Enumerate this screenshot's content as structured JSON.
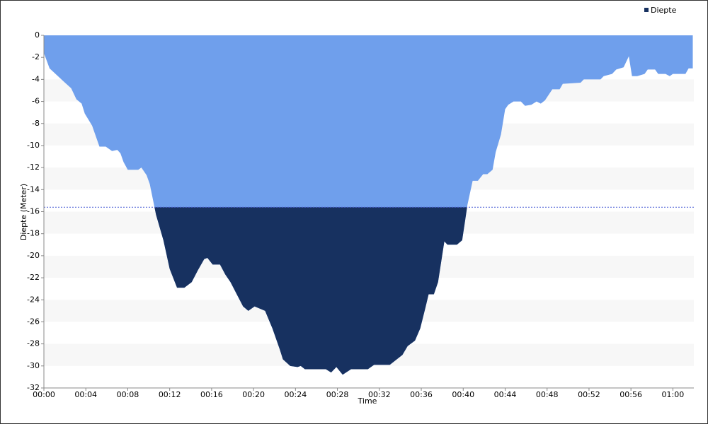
{
  "chart_data": {
    "type": "area",
    "x_label": "Time",
    "y_label": "Diepte (Meter)",
    "x": [
      0,
      0.54,
      1.9,
      2.6,
      3.1,
      3.6,
      3.9,
      4.6,
      5.3,
      5.9,
      6.5,
      7.0,
      7.3,
      7.6,
      8.0,
      9.0,
      9.3,
      9.8,
      10.1,
      10.7,
      11.4,
      12.0,
      12.7,
      13.4,
      14.1,
      14.7,
      15.3,
      15.6,
      16.1,
      16.8,
      17.3,
      17.8,
      18.4,
      19.0,
      19.5,
      20.1,
      20.6,
      21.1,
      21.8,
      22.5,
      22.8,
      23.5,
      24.2,
      24.5,
      24.9,
      26.9,
      27.4,
      27.9,
      28.5,
      29.3,
      30.9,
      31.5,
      33.0,
      34.2,
      34.7,
      35.4,
      35.9,
      36.4,
      36.7,
      37.2,
      37.6,
      38.2,
      38.5,
      39.4,
      39.9,
      40.2,
      40.4,
      40.9,
      41.4,
      41.9,
      42.3,
      42.8,
      43.1,
      43.6,
      44.0,
      44.3,
      44.8,
      45.5,
      45.9,
      46.5,
      47.0,
      47.4,
      47.8,
      48.5,
      49.2,
      49.5,
      51.2,
      51.5,
      53.1,
      53.4,
      54.2,
      54.6,
      55.3,
      55.8,
      56.1,
      56.6,
      57.3,
      57.6,
      58.3,
      58.6,
      59.3,
      59.7,
      60.0,
      61.2,
      61.5,
      61.9
    ],
    "series": [
      {
        "name": "Diepte",
        "color": "#173160",
        "values": [
          -1.6,
          -3.0,
          -4.2,
          -4.8,
          -5.8,
          -6.2,
          -7.1,
          -8.2,
          -10.1,
          -10.1,
          -10.5,
          -10.4,
          -10.7,
          -11.5,
          -12.2,
          -12.2,
          -12.0,
          -12.7,
          -13.5,
          -16.3,
          -18.6,
          -21.2,
          -22.9,
          -22.9,
          -22.4,
          -21.3,
          -20.3,
          -20.2,
          -20.8,
          -20.8,
          -21.7,
          -22.4,
          -23.5,
          -24.6,
          -25.0,
          -24.6,
          -24.8,
          -25.0,
          -26.6,
          -28.5,
          -29.4,
          -30.0,
          -30.1,
          -30.0,
          -30.3,
          -30.3,
          -30.6,
          -30.1,
          -30.8,
          -30.3,
          -30.3,
          -29.9,
          -29.9,
          -29.0,
          -28.2,
          -27.7,
          -26.6,
          -24.7,
          -23.5,
          -23.5,
          -22.4,
          -18.7,
          -19.0,
          -19.0,
          -18.6,
          -16.7,
          -15.4,
          -13.2,
          -13.2,
          -12.6,
          -12.6,
          -12.2,
          -10.6,
          -9.0,
          -6.7,
          -6.3,
          -6.0,
          -6.0,
          -6.4,
          -6.3,
          -6.0,
          -6.2,
          -5.9,
          -4.9,
          -4.9,
          -4.4,
          -4.3,
          -4.0,
          -4.0,
          -3.7,
          -3.5,
          -3.1,
          -2.9,
          -1.9,
          -3.7,
          -3.7,
          -3.5,
          -3.1,
          -3.1,
          -3.5,
          -3.5,
          -3.7,
          -3.5,
          -3.5,
          -3.0,
          -3.0
        ]
      }
    ],
    "area_color_above": "#6f9fec",
    "reference_line": -15.6,
    "reference_color": "#4a5fd6",
    "xlim": [
      0,
      62
    ],
    "ylim": [
      -32,
      0
    ],
    "xticks": [
      {
        "value": 0,
        "label": "00:00"
      },
      {
        "value": 4,
        "label": "00:04"
      },
      {
        "value": 8,
        "label": "00:08"
      },
      {
        "value": 12,
        "label": "00:12"
      },
      {
        "value": 16,
        "label": "00:16"
      },
      {
        "value": 20,
        "label": "00:20"
      },
      {
        "value": 24,
        "label": "00:24"
      },
      {
        "value": 28,
        "label": "00:28"
      },
      {
        "value": 32,
        "label": "00:32"
      },
      {
        "value": 36,
        "label": "00:36"
      },
      {
        "value": 40,
        "label": "00:40"
      },
      {
        "value": 44,
        "label": "00:44"
      },
      {
        "value": 48,
        "label": "00:48"
      },
      {
        "value": 52,
        "label": "00:52"
      },
      {
        "value": 56,
        "label": "00:56"
      },
      {
        "value": 60,
        "label": "01:00"
      }
    ],
    "yticks": [
      0,
      -2,
      -4,
      -6,
      -8,
      -10,
      -12,
      -14,
      -16,
      -18,
      -20,
      -22,
      -24,
      -26,
      -28,
      -30,
      -32
    ],
    "legend": "top-right"
  }
}
